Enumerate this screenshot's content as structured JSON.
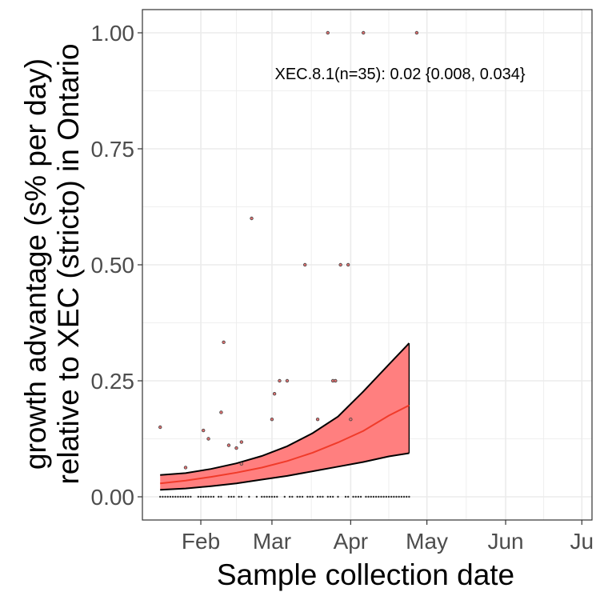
{
  "chart_data": {
    "type": "scatter",
    "x_axis": {
      "label": "Sample collection date",
      "range": [
        "2025-01-09",
        "2025-07-05"
      ],
      "ticks": [
        {
          "label": "Feb",
          "date": "2025-02-01"
        },
        {
          "label": "Mar",
          "date": "2025-03-01"
        },
        {
          "label": "Apr",
          "date": "2025-04-01"
        },
        {
          "label": "May",
          "date": "2025-05-01"
        },
        {
          "label": "Jun",
          "date": "2025-06-01"
        },
        {
          "label": "Ju",
          "date": "2025-07-01"
        }
      ]
    },
    "y_axis": {
      "label_line1": "growth advantage (s% per day)",
      "label_line2": "relative to XEC (stricto) in Ontario",
      "range": [
        -0.05,
        1.05
      ],
      "ticks": [
        {
          "label": "0.00",
          "value": 0
        },
        {
          "label": "0.25",
          "value": 0.25
        },
        {
          "label": "0.50",
          "value": 0.5
        },
        {
          "label": "0.75",
          "value": 0.75
        },
        {
          "label": "1.00",
          "value": 1.0
        }
      ]
    },
    "grid": true,
    "annotation": "XEC.8.1(n=35): 0.02 {0.008, 0.034}",
    "points": [
      {
        "x": "2025-01-16",
        "y": 0.15
      },
      {
        "x": "2025-01-26",
        "y": 0.063
      },
      {
        "x": "2025-02-02",
        "y": 0.143
      },
      {
        "x": "2025-02-04",
        "y": 0.125
      },
      {
        "x": "2025-02-09",
        "y": 0.182
      },
      {
        "x": "2025-02-10",
        "y": 0.333
      },
      {
        "x": "2025-02-12",
        "y": 0.111
      },
      {
        "x": "2025-02-15",
        "y": 0.105
      },
      {
        "x": "2025-02-17",
        "y": 0.118
      },
      {
        "x": "2025-02-17",
        "y": 0.071
      },
      {
        "x": "2025-02-21",
        "y": 0.6
      },
      {
        "x": "2025-03-01",
        "y": 0.167
      },
      {
        "x": "2025-03-02",
        "y": 0.222
      },
      {
        "x": "2025-03-04",
        "y": 0.25
      },
      {
        "x": "2025-03-07",
        "y": 0.25
      },
      {
        "x": "2025-03-14",
        "y": 0.5
      },
      {
        "x": "2025-03-19",
        "y": 0.167
      },
      {
        "x": "2025-03-23",
        "y": 1.0
      },
      {
        "x": "2025-03-25",
        "y": 0.25
      },
      {
        "x": "2025-03-26",
        "y": 0.25
      },
      {
        "x": "2025-03-28",
        "y": 0.5
      },
      {
        "x": "2025-03-31",
        "y": 0.5
      },
      {
        "x": "2025-04-01",
        "y": 0.167
      },
      {
        "x": "2025-04-06",
        "y": 1.0
      },
      {
        "x": "2025-04-27",
        "y": 1.0
      }
    ],
    "zero_points": [
      "2025-01-16",
      "2025-01-17",
      "2025-01-18",
      "2025-01-19",
      "2025-01-20",
      "2025-01-21",
      "2025-01-22",
      "2025-01-23",
      "2025-01-24",
      "2025-01-25",
      "2025-01-26",
      "2025-01-27",
      "2025-01-28",
      "2025-01-31",
      "2025-02-01",
      "2025-02-02",
      "2025-02-03",
      "2025-02-04",
      "2025-02-05",
      "2025-02-06",
      "2025-02-08",
      "2025-02-09",
      "2025-02-12",
      "2025-02-13",
      "2025-02-14",
      "2025-02-16",
      "2025-02-17",
      "2025-02-20",
      "2025-02-23",
      "2025-02-25",
      "2025-02-26",
      "2025-02-27",
      "2025-02-28",
      "2025-03-01",
      "2025-03-02",
      "2025-03-03",
      "2025-03-06",
      "2025-03-08",
      "2025-03-09",
      "2025-03-11",
      "2025-03-12",
      "2025-03-13",
      "2025-03-15",
      "2025-03-16",
      "2025-03-17",
      "2025-03-19",
      "2025-03-20",
      "2025-03-21",
      "2025-03-23",
      "2025-03-24",
      "2025-03-25",
      "2025-03-27",
      "2025-03-30",
      "2025-03-31",
      "2025-04-02",
      "2025-04-03",
      "2025-04-04",
      "2025-04-05",
      "2025-04-07",
      "2025-04-08",
      "2025-04-09",
      "2025-04-10",
      "2025-04-11",
      "2025-04-12",
      "2025-04-13",
      "2025-04-14",
      "2025-04-15",
      "2025-04-16",
      "2025-04-17",
      "2025-04-18",
      "2025-04-19",
      "2025-04-20",
      "2025-04-21",
      "2025-04-22",
      "2025-04-23",
      "2025-04-24"
    ],
    "fit": {
      "x": [
        "2025-01-16",
        "2025-01-26",
        "2025-02-05",
        "2025-02-15",
        "2025-02-25",
        "2025-03-07",
        "2025-03-17",
        "2025-03-27",
        "2025-04-06",
        "2025-04-16",
        "2025-04-24"
      ],
      "mid": [
        0.029,
        0.035,
        0.043,
        0.052,
        0.063,
        0.077,
        0.095,
        0.117,
        0.142,
        0.175,
        0.197
      ],
      "lower": [
        0.015,
        0.018,
        0.023,
        0.029,
        0.037,
        0.045,
        0.055,
        0.065,
        0.075,
        0.087,
        0.094
      ],
      "upper": [
        0.047,
        0.051,
        0.06,
        0.072,
        0.088,
        0.109,
        0.137,
        0.173,
        0.227,
        0.285,
        0.331
      ]
    },
    "colors": {
      "ribbon": "#ff7f7f",
      "fit_line": "#f03b2a",
      "bound_line": "#000000",
      "point_fill": "#e07070",
      "point_stroke": "#444444",
      "grid": "#ebebeb",
      "panel_border": "#333333"
    }
  }
}
